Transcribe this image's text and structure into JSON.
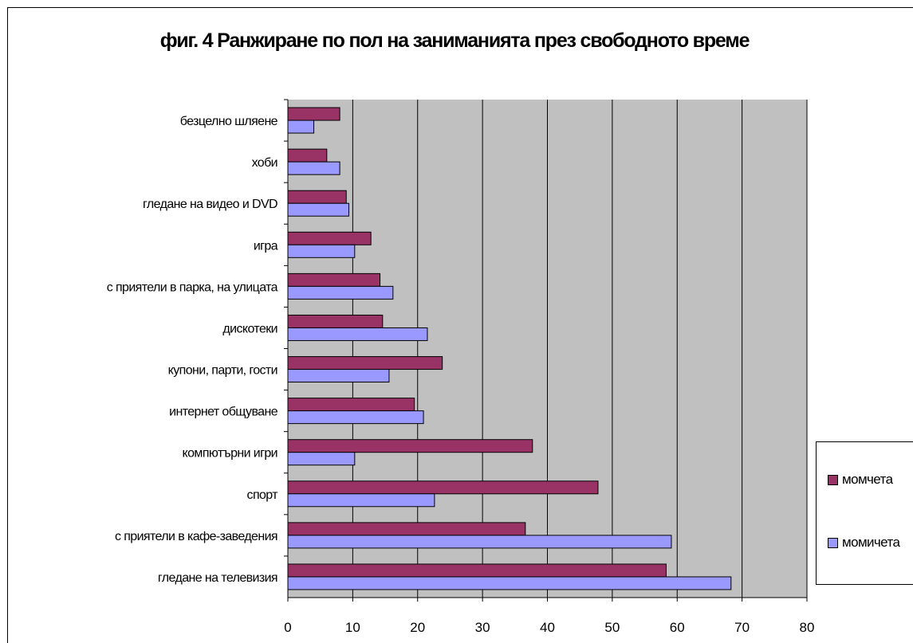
{
  "chart_data": {
    "type": "bar",
    "orientation": "horizontal",
    "title": "фиг. 4  Ранжиране по пол на заниманията през свободното време",
    "xlim": [
      0,
      80
    ],
    "ticks": [
      0,
      10,
      20,
      30,
      40,
      50,
      60,
      70,
      80
    ],
    "grid": true,
    "legend_position": "right",
    "categories": [
      "безцелно шляене",
      "хоби",
      "гледане на видео и DVD",
      "игра",
      "с приятели в парка, на улицата",
      "дискотеки",
      "купони, парти, гости",
      "интернет общуване",
      "компютърни игри",
      "спорт",
      "с приятели в кафе-заведения",
      "гледане на телевизия"
    ],
    "series": [
      {
        "name": "момчета",
        "color": "#993366",
        "values": [
          8,
          6,
          9,
          12.8,
          14.2,
          14.6,
          23.8,
          19.5,
          37.7,
          47.8,
          36.6,
          58.3
        ]
      },
      {
        "name": "момичета",
        "color": "#9999ff",
        "values": [
          4,
          8,
          9.4,
          10.3,
          16.2,
          21.5,
          15.6,
          20.9,
          10.3,
          22.6,
          59.1,
          68.3
        ]
      }
    ],
    "plot_background": "#c0c0c0"
  }
}
